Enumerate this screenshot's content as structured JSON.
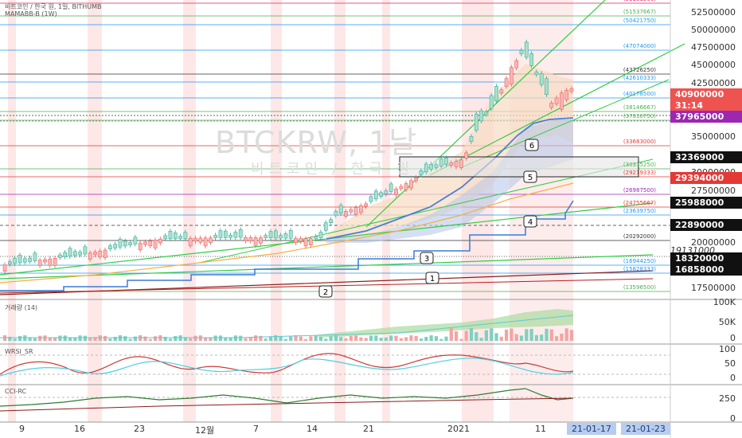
{
  "header": {
    "symbol_line": "비트코인 / 한국 원, 1일, BITHUMB",
    "indicator_line": "MAMABB-B (1W)"
  },
  "watermark": {
    "symbol": "BTCKRW, 1날",
    "name": "비트코인 / 한국 원"
  },
  "price_axis": [
    "52500000",
    "50000000",
    "47500000",
    "45000000",
    "42500000",
    "40000000",
    "35000000",
    "30000000",
    "27500000",
    "20000000",
    "17500000"
  ],
  "price_tags": [
    {
      "text": "40900000",
      "color": "#ef5350"
    },
    {
      "text": "31:14",
      "color": "#ef5350"
    },
    {
      "text": "37965000",
      "color": "#9c27b0"
    },
    {
      "text": "32369000",
      "color": "#111111"
    },
    {
      "text": "29394000",
      "color": "#e53935"
    },
    {
      "text": "25988000",
      "color": "#111111"
    },
    {
      "text": "22890000",
      "color": "#111111"
    },
    {
      "text": "18320000",
      "color": "#111111"
    },
    {
      "text": "16858000",
      "color": "#111111"
    }
  ],
  "axis_extra": "19131000",
  "levels": [
    "(53191500)",
    "(51537667)",
    "(50421750)",
    "(47074000)",
    "(43726250)",
    "(42610333)",
    "(40178500)",
    "(38146667)",
    "(37030750)",
    "(33683000)",
    "(30335250)",
    "(29219333)",
    "(26987500)",
    "(24755667)",
    "(23639750)",
    "(20292000)",
    "(16944250)",
    "(15828333)",
    "(13596500)"
  ],
  "wave_labels": [
    "1",
    "2",
    "3",
    "4",
    "5",
    "6"
  ],
  "volume": {
    "title": "거래량 (14)",
    "axis": [
      "100K",
      "50K",
      "0"
    ]
  },
  "wrsi": {
    "title": "WRSI_SR",
    "axis": [
      "100",
      "50",
      "0"
    ]
  },
  "cci": {
    "title": "CCI-RC",
    "axis": [
      "250",
      "0"
    ]
  },
  "time_axis": [
    "9",
    "16",
    "23",
    "12월",
    "7",
    "14",
    "21",
    "2021",
    "11"
  ],
  "time_selected": [
    "21-01-17",
    "21-01-23"
  ],
  "colors": {
    "up": "#26a69a",
    "down": "#ef5350",
    "accent": "#9c27b0"
  }
}
